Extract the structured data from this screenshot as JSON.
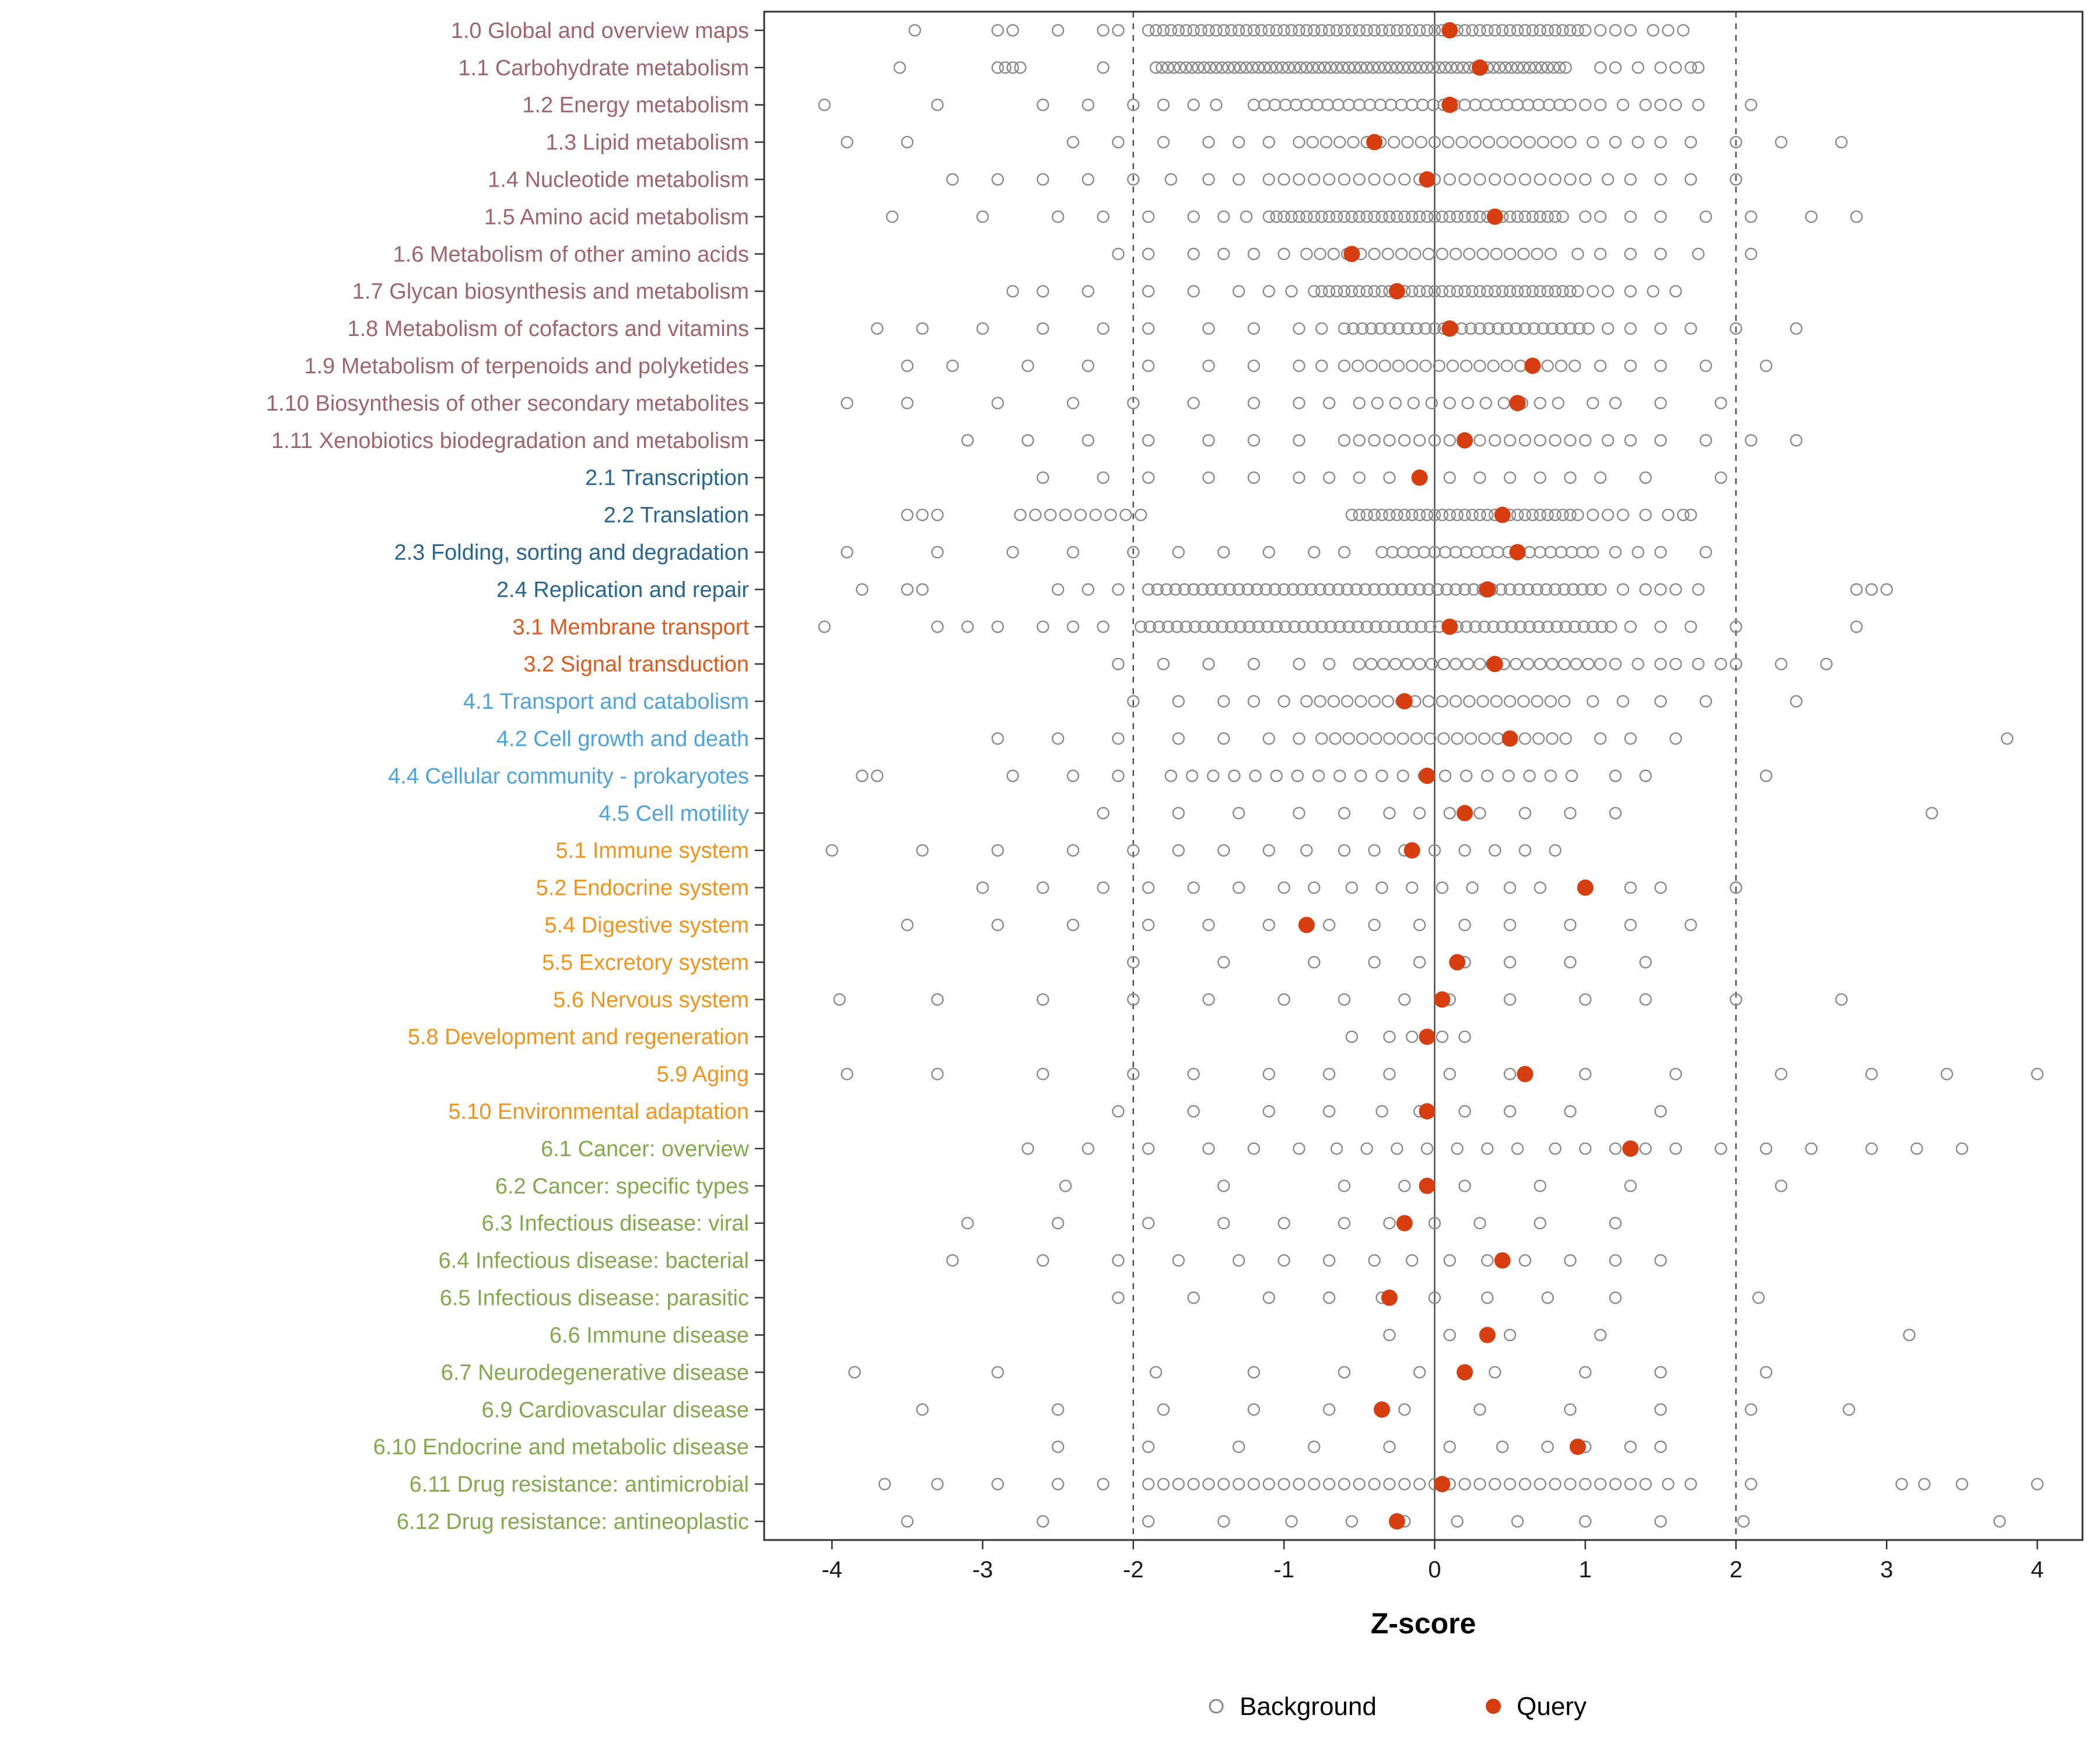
{
  "chart_data": {
    "type": "scatter",
    "title": "",
    "xlabel": "Z-score",
    "ylabel": "",
    "xlim": [
      -4.45,
      4.3
    ],
    "x_ticks": [
      -4,
      -3,
      -2,
      -1,
      0,
      1,
      2,
      3,
      4
    ],
    "grid": false,
    "reference_lines": {
      "solid": [
        0
      ],
      "dashed": [
        -2,
        2
      ]
    },
    "legend_position": "bottom",
    "legend": [
      {
        "label": "Background",
        "marker": "open-circle"
      },
      {
        "label": "Query",
        "marker": "filled-circle"
      }
    ],
    "colors": {
      "background_stroke": "#8A8A8A",
      "query_fill": "#D63D0F",
      "group_1": "#A0656C",
      "group_2": "#27678F",
      "group_3": "#E0591D",
      "group_4": "#4FA3DC",
      "group_5": "#F0941E",
      "group_6": "#81A94E",
      "reference_line": "#4d4d4d",
      "panel_border": "#333333"
    },
    "rows": [
      {
        "label": "1.0 Global and overview maps",
        "group": "1",
        "query": 0.1,
        "bands": [
          [
            -1.9,
            1.0,
            0.05
          ]
        ],
        "background": [
          -3.45,
          -2.9,
          -2.8,
          -2.5,
          -2.2,
          -2.1,
          1.1,
          1.2,
          1.3,
          1.45,
          1.55,
          1.65
        ]
      },
      {
        "label": "1.1 Carbohydrate metabolism",
        "group": "1",
        "query": 0.3,
        "bands": [
          [
            -1.85,
            0.9,
            0.04
          ]
        ],
        "background": [
          -3.55,
          -2.9,
          -2.85,
          -2.8,
          -2.75,
          -2.2,
          1.1,
          1.2,
          1.35,
          1.5,
          1.6,
          1.7,
          1.75
        ]
      },
      {
        "label": "1.2 Energy metabolism",
        "group": "1",
        "query": 0.1,
        "bands": [
          [
            -1.2,
            0.9,
            0.07
          ]
        ],
        "background": [
          -4.05,
          -3.3,
          -2.6,
          -2.3,
          -2.0,
          -1.8,
          -1.6,
          -1.45,
          1.0,
          1.1,
          1.25,
          1.4,
          1.5,
          1.6,
          1.75,
          2.1
        ]
      },
      {
        "label": "1.3 Lipid metabolism",
        "group": "1",
        "query": -0.4,
        "bands": [
          [
            -0.9,
            0.9,
            0.09
          ]
        ],
        "background": [
          -3.9,
          -3.5,
          -2.4,
          -2.1,
          -1.8,
          -1.5,
          -1.3,
          -1.1,
          1.05,
          1.2,
          1.35,
          1.5,
          1.7,
          2.0,
          2.3,
          2.7
        ]
      },
      {
        "label": "1.4 Nucleotide metabolism",
        "group": "1",
        "query": -0.05,
        "bands": [
          [
            -1.1,
            0.9,
            0.1
          ]
        ],
        "background": [
          -3.2,
          -2.9,
          -2.6,
          -2.3,
          -2.0,
          -1.75,
          -1.5,
          -1.3,
          1.0,
          1.15,
          1.3,
          1.5,
          1.7,
          2.0
        ]
      },
      {
        "label": "1.5 Amino acid metabolism",
        "group": "1",
        "query": 0.4,
        "bands": [
          [
            -1.1,
            0.85,
            0.05
          ]
        ],
        "background": [
          -3.6,
          -3.0,
          -2.5,
          -2.2,
          -1.9,
          -1.6,
          -1.4,
          -1.25,
          1.0,
          1.1,
          1.3,
          1.5,
          1.8,
          2.1,
          2.5,
          2.8
        ]
      },
      {
        "label": "1.6 Metabolism of other amino acids",
        "group": "1",
        "query": -0.55,
        "bands": [
          [
            -0.85,
            0.8,
            0.09
          ]
        ],
        "background": [
          -2.1,
          -1.9,
          -1.6,
          -1.4,
          -1.2,
          -1.0,
          0.95,
          1.1,
          1.3,
          1.5,
          1.75,
          2.1
        ]
      },
      {
        "label": "1.7 Glycan biosynthesis and metabolism",
        "group": "1",
        "query": -0.25,
        "bands": [
          [
            -0.8,
            0.95,
            0.05
          ]
        ],
        "background": [
          -2.8,
          -2.6,
          -2.3,
          -1.9,
          -1.6,
          -1.3,
          -1.1,
          -0.95,
          1.05,
          1.15,
          1.3,
          1.45,
          1.6
        ]
      },
      {
        "label": "1.8 Metabolism of cofactors and vitamins",
        "group": "1",
        "query": 0.1,
        "bands": [
          [
            -0.6,
            1.05,
            0.06
          ]
        ],
        "background": [
          -3.7,
          -3.4,
          -3.0,
          -2.6,
          -2.2,
          -1.9,
          -1.5,
          -1.2,
          -0.9,
          -0.75,
          1.15,
          1.3,
          1.5,
          1.7,
          2.0,
          2.4
        ]
      },
      {
        "label": "1.9 Metabolism of terpenoids and polyketides",
        "group": "1",
        "query": 0.65,
        "bands": [
          [
            -0.6,
            1.0,
            0.09
          ]
        ],
        "background": [
          -3.5,
          -3.2,
          -2.7,
          -2.3,
          -1.9,
          -1.5,
          -1.2,
          -0.9,
          -0.75,
          1.1,
          1.3,
          1.5,
          1.8,
          2.2
        ]
      },
      {
        "label": "1.10 Biosynthesis of other secondary metabolites",
        "group": "1",
        "query": 0.55,
        "bands": [
          [
            -0.5,
            0.9,
            0.12
          ]
        ],
        "background": [
          -3.9,
          -3.5,
          -2.9,
          -2.4,
          -2.0,
          -1.6,
          -1.2,
          -0.9,
          -0.7,
          1.05,
          1.2,
          1.5,
          1.9
        ]
      },
      {
        "label": "1.11 Xenobiotics biodegradation and metabolism",
        "group": "1",
        "query": 0.2,
        "bands": [
          [
            -0.6,
            1.0,
            0.1
          ]
        ],
        "background": [
          -3.1,
          -2.7,
          -2.3,
          -1.9,
          -1.5,
          -1.2,
          -0.9,
          1.15,
          1.3,
          1.5,
          1.8,
          2.1,
          2.4
        ]
      },
      {
        "label": "2.1 Transcription",
        "group": "2",
        "query": -0.1,
        "bands": [],
        "background": [
          -2.6,
          -2.2,
          -1.9,
          -1.5,
          -1.2,
          -0.9,
          -0.7,
          -0.5,
          -0.3,
          -0.1,
          0.1,
          0.3,
          0.5,
          0.7,
          0.9,
          1.1,
          1.4,
          1.9
        ]
      },
      {
        "label": "2.2 Translation",
        "group": "2",
        "query": 0.45,
        "bands": [
          [
            -0.55,
            0.95,
            0.05
          ]
        ],
        "background": [
          -3.5,
          -3.4,
          -3.3,
          -2.75,
          -2.65,
          -2.55,
          -2.45,
          -2.35,
          -2.25,
          -2.15,
          -2.05,
          -1.95,
          1.05,
          1.15,
          1.25,
          1.4,
          1.55,
          1.65,
          1.7
        ]
      },
      {
        "label": "2.3 Folding, sorting and degradation",
        "group": "2",
        "query": 0.55,
        "bands": [
          [
            -0.35,
            1.1,
            0.07
          ]
        ],
        "background": [
          -3.9,
          -3.3,
          -2.8,
          -2.4,
          -2.0,
          -1.7,
          -1.4,
          -1.1,
          -0.8,
          -0.6,
          1.2,
          1.35,
          1.5,
          1.8
        ]
      },
      {
        "label": "2.4 Replication and repair",
        "group": "2",
        "query": 0.35,
        "bands": [
          [
            -1.9,
            1.15,
            0.06
          ]
        ],
        "background": [
          -3.8,
          -3.5,
          -3.4,
          -2.5,
          -2.3,
          -2.1,
          1.25,
          1.4,
          1.5,
          1.6,
          1.75,
          2.8,
          2.9,
          3.0
        ]
      },
      {
        "label": "3.1 Membrane transport",
        "group": "3",
        "query": 0.1,
        "bands": [
          [
            -1.95,
            1.2,
            0.06
          ]
        ],
        "background": [
          -4.05,
          -3.3,
          -3.1,
          -2.9,
          -2.6,
          -2.4,
          -2.2,
          1.3,
          1.5,
          1.7,
          2.0,
          2.8
        ]
      },
      {
        "label": "3.2 Signal transduction",
        "group": "3",
        "query": 0.4,
        "bands": [
          [
            -0.5,
            1.1,
            0.08
          ]
        ],
        "background": [
          -2.1,
          -1.8,
          -1.5,
          -1.2,
          -0.9,
          -0.7,
          1.2,
          1.35,
          1.5,
          1.6,
          1.75,
          1.9,
          2.0,
          2.3,
          2.6
        ]
      },
      {
        "label": "4.1 Transport and catabolism",
        "group": "4",
        "query": -0.2,
        "bands": [
          [
            -0.85,
            0.9,
            0.09
          ]
        ],
        "background": [
          -2.0,
          -1.7,
          -1.4,
          -1.2,
          -1.0,
          1.05,
          1.25,
          1.5,
          1.8,
          2.4
        ]
      },
      {
        "label": "4.2 Cell growth and death",
        "group": "4",
        "query": 0.5,
        "bands": [
          [
            -0.75,
            0.95,
            0.09
          ]
        ],
        "background": [
          -2.9,
          -2.5,
          -2.1,
          -1.7,
          -1.4,
          -1.1,
          -0.9,
          1.1,
          1.3,
          1.6,
          3.8
        ]
      },
      {
        "label": "4.4 Cellular community - prokaryotes",
        "group": "4",
        "query": -0.05,
        "bands": [
          [
            -1.75,
            1.0,
            0.14
          ]
        ],
        "background": [
          -3.8,
          -3.7,
          -2.8,
          -2.4,
          -2.1,
          1.2,
          1.4,
          2.2
        ]
      },
      {
        "label": "4.5 Cell motility",
        "group": "4",
        "query": 0.2,
        "bands": [],
        "background": [
          -2.2,
          -1.7,
          -1.3,
          -0.9,
          -0.6,
          -0.3,
          -0.1,
          0.1,
          0.3,
          0.6,
          0.9,
          1.2,
          3.3
        ]
      },
      {
        "label": "5.1 Immune system",
        "group": "5",
        "query": -0.15,
        "bands": [],
        "background": [
          -4.0,
          -3.4,
          -2.9,
          -2.4,
          -2.0,
          -1.7,
          -1.4,
          -1.1,
          -0.85,
          -0.6,
          -0.4,
          -0.2,
          0.0,
          0.2,
          0.4,
          0.6,
          0.8
        ]
      },
      {
        "label": "5.2 Endocrine system",
        "group": "5",
        "query": 1.0,
        "bands": [],
        "background": [
          -3.0,
          -2.6,
          -2.2,
          -1.9,
          -1.6,
          -1.3,
          -1.0,
          -0.8,
          -0.55,
          -0.35,
          -0.15,
          0.05,
          0.25,
          0.5,
          0.7,
          1.3,
          1.5,
          2.0
        ]
      },
      {
        "label": "5.4 Digestive system",
        "group": "5",
        "query": -0.85,
        "bands": [],
        "background": [
          -3.5,
          -2.9,
          -2.4,
          -1.9,
          -1.5,
          -1.1,
          -0.7,
          -0.4,
          -0.1,
          0.2,
          0.5,
          0.9,
          1.3,
          1.7
        ]
      },
      {
        "label": "5.5 Excretory system",
        "group": "5",
        "query": 0.15,
        "bands": [],
        "background": [
          -2.0,
          -1.4,
          -0.8,
          -0.4,
          -0.1,
          0.2,
          0.5,
          0.9,
          1.4
        ]
      },
      {
        "label": "5.6 Nervous system",
        "group": "5",
        "query": 0.05,
        "bands": [],
        "background": [
          -3.95,
          -3.3,
          -2.6,
          -2.0,
          -1.5,
          -1.0,
          -0.6,
          -0.2,
          0.1,
          0.5,
          1.0,
          1.4,
          2.0,
          2.7
        ]
      },
      {
        "label": "5.8 Development and regeneration",
        "group": "5",
        "query": -0.05,
        "bands": [],
        "background": [
          -0.55,
          -0.3,
          -0.15,
          0.05,
          0.2
        ]
      },
      {
        "label": "5.9 Aging",
        "group": "5",
        "query": 0.6,
        "bands": [],
        "background": [
          -3.9,
          -3.3,
          -2.6,
          -2.0,
          -1.6,
          -1.1,
          -0.7,
          -0.3,
          0.1,
          0.5,
          1.0,
          1.6,
          2.3,
          2.9,
          3.4,
          4.0
        ]
      },
      {
        "label": "5.10 Environmental adaptation",
        "group": "5",
        "query": -0.05,
        "bands": [],
        "background": [
          -2.1,
          -1.6,
          -1.1,
          -0.7,
          -0.35,
          -0.1,
          0.2,
          0.5,
          0.9,
          1.5
        ]
      },
      {
        "label": "6.1 Cancer: overview",
        "group": "6",
        "query": 1.3,
        "bands": [],
        "background": [
          -2.7,
          -2.3,
          -1.9,
          -1.5,
          -1.2,
          -0.9,
          -0.65,
          -0.45,
          -0.25,
          -0.05,
          0.15,
          0.35,
          0.55,
          0.8,
          1.0,
          1.2,
          1.4,
          1.6,
          1.9,
          2.2,
          2.5,
          2.9,
          3.2,
          3.5
        ]
      },
      {
        "label": "6.2 Cancer: specific types",
        "group": "6",
        "query": -0.05,
        "bands": [],
        "background": [
          -2.45,
          -1.4,
          -0.6,
          -0.2,
          0.2,
          0.7,
          1.3,
          2.3
        ]
      },
      {
        "label": "6.3 Infectious disease: viral",
        "group": "6",
        "query": -0.2,
        "bands": [],
        "background": [
          -3.1,
          -2.5,
          -1.9,
          -1.4,
          -1.0,
          -0.6,
          -0.3,
          0.0,
          0.3,
          0.7,
          1.2
        ]
      },
      {
        "label": "6.4 Infectious disease: bacterial",
        "group": "6",
        "query": 0.45,
        "bands": [],
        "background": [
          -3.2,
          -2.6,
          -2.1,
          -1.7,
          -1.3,
          -1.0,
          -0.7,
          -0.4,
          -0.15,
          0.1,
          0.35,
          0.6,
          0.9,
          1.2,
          1.5
        ]
      },
      {
        "label": "6.5 Infectious disease: parasitic",
        "group": "6",
        "query": -0.3,
        "bands": [],
        "background": [
          -2.1,
          -1.6,
          -1.1,
          -0.7,
          -0.35,
          0.0,
          0.35,
          0.75,
          1.2,
          2.15
        ]
      },
      {
        "label": "6.6 Immune disease",
        "group": "6",
        "query": 0.35,
        "bands": [],
        "background": [
          -0.3,
          0.1,
          0.5,
          1.1,
          3.15
        ]
      },
      {
        "label": "6.7 Neurodegenerative disease",
        "group": "6",
        "query": 0.2,
        "bands": [],
        "background": [
          -3.85,
          -2.9,
          -1.85,
          -1.2,
          -0.6,
          -0.1,
          0.4,
          1.0,
          1.5,
          2.2
        ]
      },
      {
        "label": "6.9 Cardiovascular disease",
        "group": "6",
        "query": -0.35,
        "bands": [],
        "background": [
          -3.4,
          -2.5,
          -1.8,
          -1.2,
          -0.7,
          -0.2,
          0.3,
          0.9,
          1.5,
          2.1,
          2.75
        ]
      },
      {
        "label": "6.10 Endocrine and metabolic disease",
        "group": "6",
        "query": 0.95,
        "bands": [],
        "background": [
          -2.5,
          -1.9,
          -1.3,
          -0.8,
          -0.3,
          0.1,
          0.45,
          0.75,
          1.0,
          1.3,
          1.5
        ]
      },
      {
        "label": "6.11 Drug resistance: antimicrobial",
        "group": "6",
        "query": 0.05,
        "bands": [
          [
            -1.9,
            1.4,
            0.1
          ]
        ],
        "background": [
          -3.65,
          -3.3,
          -2.9,
          -2.5,
          -2.2,
          1.55,
          1.7,
          2.1,
          3.1,
          3.25,
          3.5,
          4.0
        ]
      },
      {
        "label": "6.12 Drug resistance: antineoplastic",
        "group": "6",
        "query": -0.25,
        "bands": [],
        "background": [
          -3.5,
          -2.6,
          -1.9,
          -1.4,
          -0.95,
          -0.55,
          -0.2,
          0.15,
          0.55,
          1.0,
          1.5,
          2.05,
          3.75
        ]
      }
    ]
  }
}
